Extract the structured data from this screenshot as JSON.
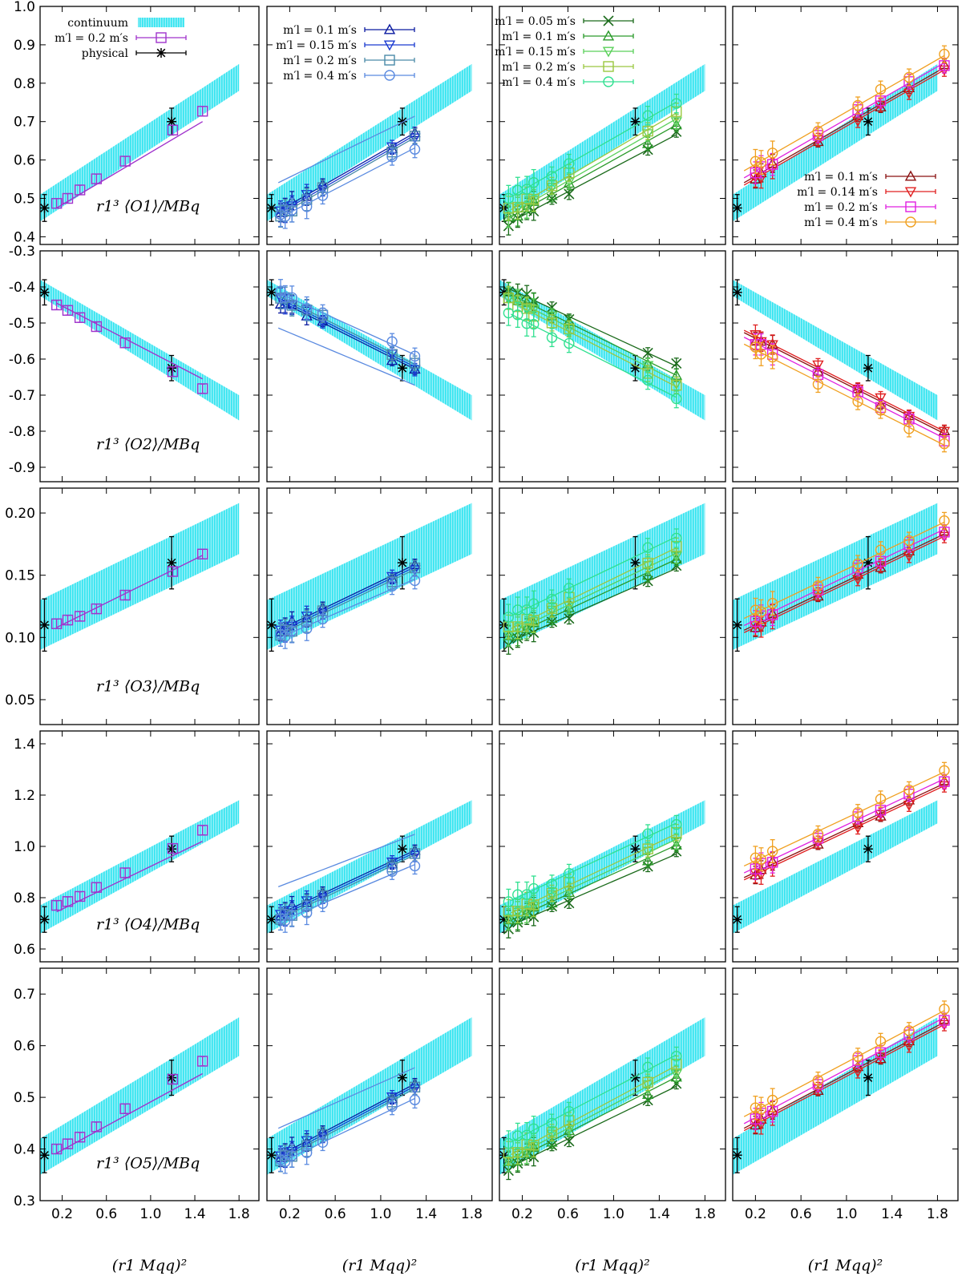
{
  "figure": {
    "x_axis_title": "(r1 Mqq)²",
    "x_ticks": [
      0.2,
      0.6,
      1.0,
      1.4,
      1.8
    ],
    "x_tick_labels": [
      "0.2",
      "0.6",
      "1.0",
      "1.4",
      "1.8"
    ],
    "xlim": [
      0.0,
      1.98
    ],
    "colors": {
      "band": "#33e5f0",
      "fit_0p2": "#a033cc",
      "physical": "#000000",
      "c01": "#0a1aa0",
      "c015": "#1a3ad0",
      "c02": "#4a8aa8",
      "c04": "#5a8ae0",
      "a005": "#1a6a1a",
      "a01": "#2a9a2a",
      "a015": "#5ad05a",
      "a02": "#9ac840",
      "a04": "#30e090",
      "f01": "#8a1010",
      "f014": "#e02020",
      "f02": "#e020e0",
      "f04": "#f0a020"
    },
    "legends": {
      "col1": [
        {
          "label": "continuum",
          "marker": "band"
        },
        {
          "label": "m′l = 0.2 m′s",
          "marker": "square"
        },
        {
          "label": "physical",
          "marker": "asterisk"
        }
      ],
      "col2": [
        {
          "label": "m′l = 0.1 m′s",
          "marker": "triangle-up"
        },
        {
          "label": "m′l = 0.15 m′s",
          "marker": "triangle-down"
        },
        {
          "label": "m′l = 0.2 m′s",
          "marker": "square"
        },
        {
          "label": "m′l = 0.4 m′s",
          "marker": "circle"
        }
      ],
      "col3": [
        {
          "label": "m′l = 0.05 m′s",
          "marker": "x"
        },
        {
          "label": "m′l = 0.1 m′s",
          "marker": "triangle-up"
        },
        {
          "label": "m′l = 0.15 m′s",
          "marker": "triangle-down"
        },
        {
          "label": "m′l = 0.2 m′s",
          "marker": "square"
        },
        {
          "label": "m′l = 0.4 m′s",
          "marker": "circle"
        }
      ],
      "col4": [
        {
          "label": "m′l = 0.1 m′s",
          "marker": "triangle-up"
        },
        {
          "label": "m′l = 0.14 m′s",
          "marker": "triangle-down"
        },
        {
          "label": "m′l = 0.2 m′s",
          "marker": "square"
        },
        {
          "label": "m′l = 0.4 m′s",
          "marker": "circle"
        }
      ]
    }
  },
  "chart_data": [
    {
      "type": "scatter",
      "row": 1,
      "ylabel": "r1³ ⟨O1⟩/MBq",
      "ylim": [
        0.38,
        1.0
      ],
      "yticks": [
        0.4,
        0.5,
        0.6,
        0.7,
        0.8,
        0.9,
        1.0
      ],
      "ytick_labels": [
        "0.4",
        "0.5",
        "0.6",
        "0.7",
        "0.8",
        "0.9",
        "1.0"
      ],
      "physical": [
        {
          "x": 0.04,
          "y": 0.475,
          "err": 0.035
        },
        {
          "x": 1.19,
          "y": 0.7,
          "err": 0.035
        }
      ],
      "band": {
        "x": [
          0.0,
          1.8
        ],
        "lower": [
          0.44,
          0.78
        ],
        "upper": [
          0.51,
          0.85
        ]
      },
      "line_0p2": {
        "x": [
          0.15,
          1.47
        ],
        "y": [
          0.475,
          0.7
        ]
      },
      "pts_0p2": [
        [
          0.15,
          0.487
        ],
        [
          0.25,
          0.5
        ],
        [
          0.36,
          0.522
        ],
        [
          0.51,
          0.551
        ],
        [
          0.77,
          0.597
        ],
        [
          1.2,
          0.678
        ],
        [
          1.47,
          0.727
        ]
      ]
    },
    {
      "type": "scatter",
      "row": 2,
      "ylabel": "r1³ ⟨O2⟩/MBq",
      "ylim": [
        -0.94,
        -0.3
      ],
      "yticks": [
        -0.3,
        -0.4,
        -0.5,
        -0.6,
        -0.7,
        -0.8,
        -0.9
      ],
      "ytick_labels": [
        "-0.3",
        "-0.4",
        "-0.5",
        "-0.6",
        "-0.7",
        "-0.8",
        "-0.9"
      ],
      "physical": [
        {
          "x": 0.04,
          "y": -0.415,
          "err": 0.035
        },
        {
          "x": 1.19,
          "y": -0.625,
          "err": 0.035
        }
      ],
      "band": {
        "x": [
          0.0,
          1.8
        ],
        "lower": [
          -0.425,
          -0.77
        ],
        "upper": [
          -0.38,
          -0.7
        ]
      },
      "line_0p2": {
        "x": [
          0.15,
          1.47
        ],
        "y": [
          -0.445,
          -0.655
        ]
      },
      "pts_0p2": [
        [
          0.15,
          -0.45
        ],
        [
          0.25,
          -0.465
        ],
        [
          0.36,
          -0.485
        ],
        [
          0.51,
          -0.51
        ],
        [
          0.77,
          -0.555
        ],
        [
          1.2,
          -0.635
        ],
        [
          1.47,
          -0.682
        ]
      ]
    },
    {
      "type": "scatter",
      "row": 3,
      "ylabel": "r1³ ⟨O3⟩/MBq",
      "ylim": [
        0.03,
        0.22
      ],
      "yticks": [
        0.05,
        0.1,
        0.15,
        0.2
      ],
      "ytick_labels": [
        "0.05",
        "0.10",
        "0.15",
        "0.20"
      ],
      "physical": [
        {
          "x": 0.04,
          "y": 0.11,
          "err": 0.021
        },
        {
          "x": 1.19,
          "y": 0.16,
          "err": 0.021
        }
      ],
      "band": {
        "x": [
          0.0,
          1.8
        ],
        "lower": [
          0.09,
          0.167
        ],
        "upper": [
          0.13,
          0.208
        ]
      },
      "line_0p2": {
        "x": [
          0.15,
          1.47
        ],
        "y": [
          0.108,
          0.166
        ]
      },
      "pts_0p2": [
        [
          0.15,
          0.111
        ],
        [
          0.25,
          0.114
        ],
        [
          0.36,
          0.117
        ],
        [
          0.51,
          0.123
        ],
        [
          0.77,
          0.134
        ],
        [
          1.2,
          0.153
        ],
        [
          1.47,
          0.167
        ]
      ]
    },
    {
      "type": "scatter",
      "row": 4,
      "ylabel": "r1³ ⟨O4⟩/MBq",
      "ylim": [
        0.55,
        1.45
      ],
      "yticks": [
        0.6,
        0.8,
        1.0,
        1.2,
        1.4
      ],
      "ytick_labels": [
        "0.6",
        "0.8",
        "1.0",
        "1.2",
        "1.4"
      ],
      "physical": [
        {
          "x": 0.04,
          "y": 0.715,
          "err": 0.05
        },
        {
          "x": 1.19,
          "y": 0.99,
          "err": 0.05
        }
      ],
      "band": {
        "x": [
          0.0,
          1.8
        ],
        "lower": [
          0.66,
          1.09
        ],
        "upper": [
          0.77,
          1.18
        ]
      },
      "line_0p2": {
        "x": [
          0.15,
          1.47
        ],
        "y": [
          0.745,
          1.02
        ]
      },
      "pts_0p2": [
        [
          0.15,
          0.77
        ],
        [
          0.25,
          0.785
        ],
        [
          0.36,
          0.805
        ],
        [
          0.51,
          0.84
        ],
        [
          0.77,
          0.897
        ],
        [
          1.2,
          0.992
        ],
        [
          1.47,
          1.063
        ]
      ]
    },
    {
      "type": "scatter",
      "row": 5,
      "ylabel": "r1³ ⟨O5⟩/MBq",
      "ylim": [
        0.3,
        0.75
      ],
      "yticks": [
        0.3,
        0.4,
        0.5,
        0.6,
        0.7
      ],
      "ytick_labels": [
        "0.3",
        "0.4",
        "0.5",
        "0.6",
        "0.7"
      ],
      "physical": [
        {
          "x": 0.04,
          "y": 0.388,
          "err": 0.034
        },
        {
          "x": 1.19,
          "y": 0.538,
          "err": 0.034
        }
      ],
      "band": {
        "x": [
          0.0,
          1.8
        ],
        "lower": [
          0.35,
          0.58
        ],
        "upper": [
          0.42,
          0.655
        ]
      },
      "line_0p2": {
        "x": [
          0.15,
          1.47
        ],
        "y": [
          0.392,
          0.546
        ]
      },
      "pts_0p2": [
        [
          0.15,
          0.4
        ],
        [
          0.25,
          0.41
        ],
        [
          0.36,
          0.423
        ],
        [
          0.51,
          0.443
        ],
        [
          0.77,
          0.478
        ],
        [
          1.2,
          0.535
        ],
        [
          1.47,
          0.57
        ]
      ]
    }
  ]
}
